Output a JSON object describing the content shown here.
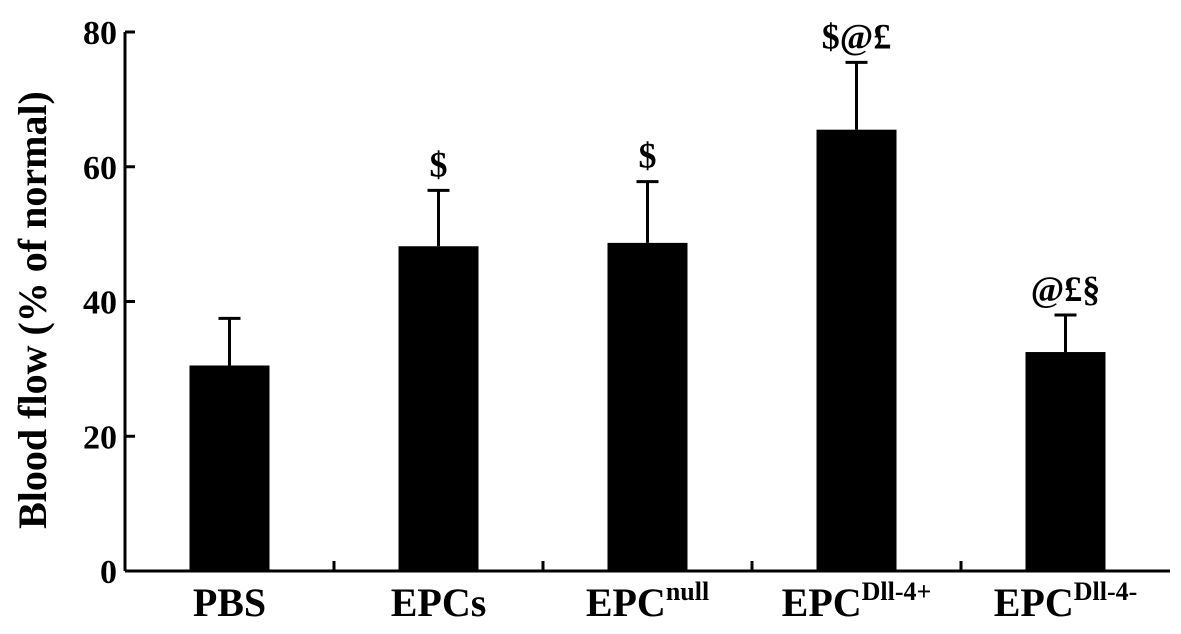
{
  "chart_data": {
    "type": "bar",
    "title": "",
    "xlabel": "",
    "ylabel": "Blood flow (% of normal)",
    "ylim": [
      0,
      80
    ],
    "yticks": [
      0,
      20,
      40,
      60,
      80
    ],
    "grid": false,
    "categories": [
      {
        "base": "PBS",
        "sup": ""
      },
      {
        "base": "EPCs",
        "sup": ""
      },
      {
        "base": "EPC",
        "sup": "null"
      },
      {
        "base": "EPC",
        "sup": "Dll-4+"
      },
      {
        "base": "EPC",
        "sup": "Dll-4-"
      }
    ],
    "values": [
      30.5,
      48.2,
      48.7,
      65.5,
      32.5
    ],
    "error_upper": [
      7.0,
      8.3,
      9.1,
      10.0,
      5.5
    ],
    "annotations": [
      "",
      "$",
      "$",
      "$@£",
      "@£§"
    ],
    "bar_color": "#000000"
  }
}
